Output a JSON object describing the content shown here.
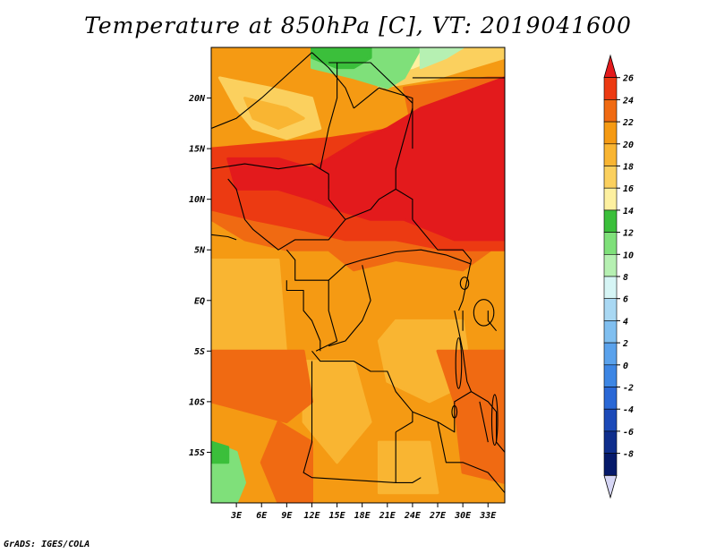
{
  "title": "Temperature at 850hPa [C], VT: 2019041600",
  "credit": "GrADS: IGES/COLA",
  "map": {
    "lat_range": [
      -20,
      25
    ],
    "lon_range": [
      0,
      35
    ],
    "lat_ticks": [
      {
        "value": 20,
        "label": "20N"
      },
      {
        "value": 15,
        "label": "15N"
      },
      {
        "value": 10,
        "label": "10N"
      },
      {
        "value": 5,
        "label": "5N"
      },
      {
        "value": 0,
        "label": "EQ"
      },
      {
        "value": -5,
        "label": "5S"
      },
      {
        "value": -10,
        "label": "10S"
      },
      {
        "value": -15,
        "label": "15S"
      }
    ],
    "lon_ticks": [
      {
        "value": 3,
        "label": "3E"
      },
      {
        "value": 6,
        "label": "6E"
      },
      {
        "value": 9,
        "label": "9E"
      },
      {
        "value": 12,
        "label": "12E"
      },
      {
        "value": 15,
        "label": "15E"
      },
      {
        "value": 18,
        "label": "18E"
      },
      {
        "value": 21,
        "label": "21E"
      },
      {
        "value": 24,
        "label": "24E"
      },
      {
        "value": 27,
        "label": "27E"
      },
      {
        "value": 30,
        "label": "30E"
      },
      {
        "value": 33,
        "label": "33E"
      }
    ]
  },
  "colorbar": {
    "labels": [
      "26",
      "24",
      "22",
      "20",
      "18",
      "16",
      "14",
      "12",
      "10",
      "8",
      "6",
      "4",
      "2",
      "0",
      "-2",
      "-4",
      "-6",
      "-8"
    ],
    "colors": [
      "#e31a1c",
      "#ec3a12",
      "#f06a12",
      "#f59a13",
      "#f9b532",
      "#fbd05e",
      "#fdf0a0",
      "#3bbf3b",
      "#7fe07a",
      "#b6f0b2",
      "#d6f5f5",
      "#a9d8f3",
      "#80bff0",
      "#5aa2ec",
      "#3d86e4",
      "#2a68d6",
      "#1c4ab8",
      "#0f2e8c",
      "#061a6a",
      "#d6d6f5"
    ]
  },
  "regions": [
    {
      "color": "#f59a13",
      "polygon": [
        [
          0,
          25
        ],
        [
          35,
          25
        ],
        [
          35,
          -20
        ],
        [
          0,
          -20
        ]
      ]
    },
    {
      "color": "#f9b532",
      "polygon": [
        [
          22,
          -2
        ],
        [
          30,
          -2
        ],
        [
          31,
          -8
        ],
        [
          26,
          -10
        ],
        [
          21,
          -8
        ],
        [
          20,
          -4
        ]
      ]
    },
    {
      "color": "#f9b532",
      "polygon": [
        [
          11,
          -6
        ],
        [
          17,
          -6
        ],
        [
          19,
          -12
        ],
        [
          15,
          -16
        ],
        [
          11,
          -12
        ]
      ]
    },
    {
      "color": "#f9b532",
      "polygon": [
        [
          0,
          4
        ],
        [
          8,
          4
        ],
        [
          9,
          -6
        ],
        [
          0,
          -6
        ]
      ]
    },
    {
      "color": "#f9b532",
      "polygon": [
        [
          20,
          -14
        ],
        [
          26,
          -14
        ],
        [
          27,
          -19
        ],
        [
          20,
          -19
        ]
      ]
    },
    {
      "color": "#f06a12",
      "polygon": [
        [
          0,
          -5
        ],
        [
          11,
          -5
        ],
        [
          12,
          -10
        ],
        [
          9,
          -12
        ],
        [
          0,
          -10
        ]
      ]
    },
    {
      "color": "#f06a12",
      "polygon": [
        [
          8,
          -12
        ],
        [
          12,
          -14
        ],
        [
          12,
          -20
        ],
        [
          8,
          -20
        ],
        [
          6,
          -16
        ]
      ]
    },
    {
      "color": "#f06a12",
      "polygon": [
        [
          27,
          -5
        ],
        [
          35,
          -5
        ],
        [
          35,
          -18
        ],
        [
          30,
          -17
        ],
        [
          29,
          -10
        ]
      ]
    },
    {
      "color": "#f06a12",
      "polygon": [
        [
          0,
          13
        ],
        [
          35,
          16
        ],
        [
          35,
          6
        ],
        [
          30,
          3
        ],
        [
          22,
          4
        ],
        [
          17,
          3
        ],
        [
          14,
          5
        ],
        [
          9,
          5
        ],
        [
          4,
          6
        ],
        [
          0,
          8
        ]
      ]
    },
    {
      "color": "#f06a12",
      "polygon": [
        [
          23,
          21
        ],
        [
          33,
          22
        ],
        [
          35,
          22
        ],
        [
          35,
          16
        ],
        [
          24,
          17
        ]
      ]
    },
    {
      "color": "#ec3a12",
      "polygon": [
        [
          0,
          15
        ],
        [
          14,
          16
        ],
        [
          22,
          17
        ],
        [
          26,
          19
        ],
        [
          35,
          22
        ],
        [
          35,
          5
        ],
        [
          28,
          5
        ],
        [
          22,
          6
        ],
        [
          16,
          6
        ],
        [
          11,
          7
        ],
        [
          5,
          8
        ],
        [
          0,
          9
        ]
      ]
    },
    {
      "color": "#e31a1c",
      "polygon": [
        [
          2,
          14
        ],
        [
          8,
          14
        ],
        [
          12,
          13
        ],
        [
          18,
          16
        ],
        [
          21,
          17
        ],
        [
          25,
          19
        ],
        [
          35,
          22
        ],
        [
          35,
          6
        ],
        [
          29,
          6
        ],
        [
          23,
          8
        ],
        [
          19,
          8
        ],
        [
          15,
          9
        ],
        [
          12,
          10
        ],
        [
          8,
          11
        ],
        [
          3,
          11
        ]
      ]
    },
    {
      "color": "#fbd05e",
      "polygon": [
        [
          1,
          22
        ],
        [
          7,
          21
        ],
        [
          12,
          20
        ],
        [
          13,
          17
        ],
        [
          9,
          16
        ],
        [
          5,
          17
        ],
        [
          3,
          19
        ]
      ]
    },
    {
      "color": "#fbd05e",
      "polygon": [
        [
          20,
          21
        ],
        [
          27,
          22
        ],
        [
          35,
          24
        ],
        [
          35,
          25
        ],
        [
          20,
          25
        ]
      ]
    },
    {
      "color": "#f9b532",
      "polygon": [
        [
          4,
          20
        ],
        [
          9,
          19
        ],
        [
          11,
          18
        ],
        [
          8,
          17
        ],
        [
          5,
          18
        ]
      ]
    },
    {
      "color": "#fdf0a0",
      "polygon": [
        [
          19,
          22
        ],
        [
          24,
          23
        ],
        [
          27,
          24
        ],
        [
          27,
          25
        ],
        [
          19,
          25
        ]
      ]
    },
    {
      "color": "#7fe07a",
      "polygon": [
        [
          12,
          23
        ],
        [
          17,
          22
        ],
        [
          21,
          21
        ],
        [
          23,
          22
        ],
        [
          25,
          25
        ],
        [
          12,
          25
        ]
      ]
    },
    {
      "color": "#3bbf3b",
      "polygon": [
        [
          12,
          24
        ],
        [
          15,
          23
        ],
        [
          17,
          23
        ],
        [
          19,
          24
        ],
        [
          19,
          25
        ],
        [
          12,
          25
        ]
      ]
    },
    {
      "color": "#b6f0b2",
      "polygon": [
        [
          25,
          23
        ],
        [
          28,
          24
        ],
        [
          30,
          25
        ],
        [
          25,
          25
        ]
      ]
    },
    {
      "color": "#7fe07a",
      "polygon": [
        [
          0,
          -14
        ],
        [
          3,
          -15
        ],
        [
          4,
          -18
        ],
        [
          3,
          -20
        ],
        [
          0,
          -20
        ]
      ]
    },
    {
      "color": "#3bbf3b",
      "polygon": [
        [
          0,
          -14
        ],
        [
          2,
          -14.5
        ],
        [
          2,
          -16
        ],
        [
          0,
          -16
        ]
      ]
    }
  ],
  "borders": [
    [
      [
        0,
        17
      ],
      [
        3,
        18
      ],
      [
        6,
        20
      ],
      [
        10,
        23
      ],
      [
        12,
        24.5
      ]
    ],
    [
      [
        12,
        24.5
      ],
      [
        14,
        23
      ],
      [
        16,
        21
      ],
      [
        17,
        19
      ]
    ],
    [
      [
        17,
        19
      ],
      [
        20,
        21
      ],
      [
        24,
        20
      ],
      [
        24,
        15
      ]
    ],
    [
      [
        15,
        23.5
      ],
      [
        15,
        20
      ],
      [
        14,
        17
      ],
      [
        13,
        13
      ]
    ],
    [
      [
        0,
        13
      ],
      [
        4,
        13.5
      ],
      [
        8,
        13
      ],
      [
        12,
        13.5
      ],
      [
        14,
        12.5
      ],
      [
        14,
        11
      ]
    ],
    [
      [
        14,
        23.5
      ],
      [
        19,
        23.5
      ],
      [
        24,
        19.5
      ]
    ],
    [
      [
        24,
        19
      ],
      [
        23,
        16
      ],
      [
        22,
        13
      ],
      [
        22,
        11
      ],
      [
        24,
        10
      ],
      [
        24,
        8
      ]
    ],
    [
      [
        14,
        11
      ],
      [
        14,
        10
      ],
      [
        16,
        8
      ],
      [
        19,
        9
      ],
      [
        20,
        10
      ],
      [
        22,
        11
      ]
    ],
    [
      [
        24,
        8
      ],
      [
        27,
        5
      ],
      [
        30,
        5
      ],
      [
        31,
        4
      ]
    ],
    [
      [
        24,
        22
      ],
      [
        35,
        22
      ]
    ],
    [
      [
        16,
        8
      ],
      [
        15,
        7
      ],
      [
        14,
        6
      ],
      [
        10,
        6
      ],
      [
        8,
        5
      ],
      [
        5,
        7
      ],
      [
        4,
        8
      ],
      [
        3,
        11
      ],
      [
        2,
        12
      ]
    ],
    [
      [
        0,
        6.5
      ],
      [
        2,
        6.3
      ],
      [
        3,
        6
      ]
    ],
    [
      [
        9,
        5
      ],
      [
        10,
        4
      ],
      [
        10,
        2
      ],
      [
        12,
        2
      ],
      [
        14,
        2
      ],
      [
        16,
        3.5
      ],
      [
        18,
        4
      ],
      [
        22,
        4.8
      ],
      [
        25,
        5
      ],
      [
        28,
        4.5
      ],
      [
        31,
        3.6
      ]
    ],
    [
      [
        9,
        2
      ],
      [
        9,
        1
      ],
      [
        11,
        1
      ],
      [
        11,
        -1
      ],
      [
        12,
        -2
      ],
      [
        13,
        -4
      ],
      [
        13,
        -5
      ]
    ],
    [
      [
        14,
        2
      ],
      [
        14,
        -1
      ],
      [
        15,
        -4
      ],
      [
        12.5,
        -5
      ]
    ],
    [
      [
        18,
        3.5
      ],
      [
        19,
        0
      ],
      [
        18,
        -2
      ],
      [
        16,
        -4
      ],
      [
        14,
        -4.5
      ]
    ],
    [
      [
        12,
        -5
      ],
      [
        13,
        -6
      ],
      [
        17,
        -6
      ],
      [
        19,
        -7
      ],
      [
        21,
        -7
      ],
      [
        22,
        -9
      ],
      [
        24,
        -11
      ],
      [
        27,
        -12
      ],
      [
        29,
        -13
      ],
      [
        29,
        -10
      ],
      [
        31,
        -9
      ]
    ],
    [
      [
        12,
        -6
      ],
      [
        12,
        -14
      ],
      [
        11,
        -17
      ],
      [
        12,
        -17.5
      ],
      [
        22,
        -18
      ],
      [
        24,
        -18
      ],
      [
        25,
        -17.5
      ]
    ],
    [
      [
        22,
        -13
      ],
      [
        22,
        -18
      ]
    ],
    [
      [
        22,
        -13
      ],
      [
        24,
        -12
      ],
      [
        24,
        -11
      ]
    ],
    [
      [
        27,
        -12
      ],
      [
        28,
        -16
      ],
      [
        30,
        -16
      ],
      [
        33,
        -17
      ],
      [
        35,
        -19
      ]
    ],
    [
      [
        29,
        -1
      ],
      [
        29.5,
        -3
      ],
      [
        30,
        -5
      ],
      [
        30.5,
        -8
      ],
      [
        31,
        -9
      ]
    ],
    [
      [
        30,
        -1
      ],
      [
        30,
        -3
      ]
    ],
    [
      [
        31,
        4
      ],
      [
        30.5,
        2
      ],
      [
        30,
        0
      ],
      [
        29.5,
        -1
      ]
    ],
    [
      [
        33,
        -1
      ],
      [
        33,
        -2
      ],
      [
        34,
        -3
      ]
    ],
    [
      [
        31,
        -9
      ],
      [
        33,
        -10
      ],
      [
        34,
        -11
      ],
      [
        34,
        -14
      ],
      [
        35,
        -15
      ]
    ],
    [
      [
        32,
        -10
      ],
      [
        32.5,
        -12
      ],
      [
        33,
        -14
      ]
    ]
  ],
  "lakes": [
    {
      "cx": 32.5,
      "cy": -1.2,
      "rx": 1.2,
      "ry": 1.3
    },
    {
      "cx": 30.2,
      "cy": 1.7,
      "rx": 0.5,
      "ry": 0.6
    },
    {
      "cx": 29.5,
      "cy": -6.2,
      "rx": 0.35,
      "ry": 2.5
    },
    {
      "cx": 33.8,
      "cy": -11.8,
      "rx": 0.35,
      "ry": 2.5
    },
    {
      "cx": 29.0,
      "cy": -11.0,
      "rx": 0.3,
      "ry": 0.6
    }
  ]
}
